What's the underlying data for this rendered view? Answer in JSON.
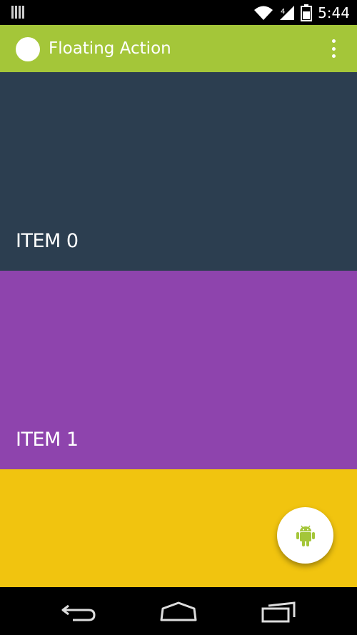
{
  "status_bar": {
    "time": "5:44",
    "icons": [
      "sim-icon",
      "wifi-icon",
      "signal-icon",
      "battery-icon"
    ]
  },
  "action_bar": {
    "title": "Floating Action",
    "color": "#a4c639",
    "menu_icon": "overflow-menu-icon"
  },
  "items": [
    {
      "label": "ITEM 0",
      "color": "#2c3e50"
    },
    {
      "label": "ITEM 1",
      "color": "#8e44ad"
    },
    {
      "label": "",
      "color": "#f1c40f"
    }
  ],
  "fab": {
    "icon": "android-icon",
    "icon_color": "#a4c639",
    "background": "#ffffff"
  },
  "nav_bar": {
    "buttons": [
      "back-icon",
      "home-icon",
      "recent-apps-icon"
    ]
  }
}
